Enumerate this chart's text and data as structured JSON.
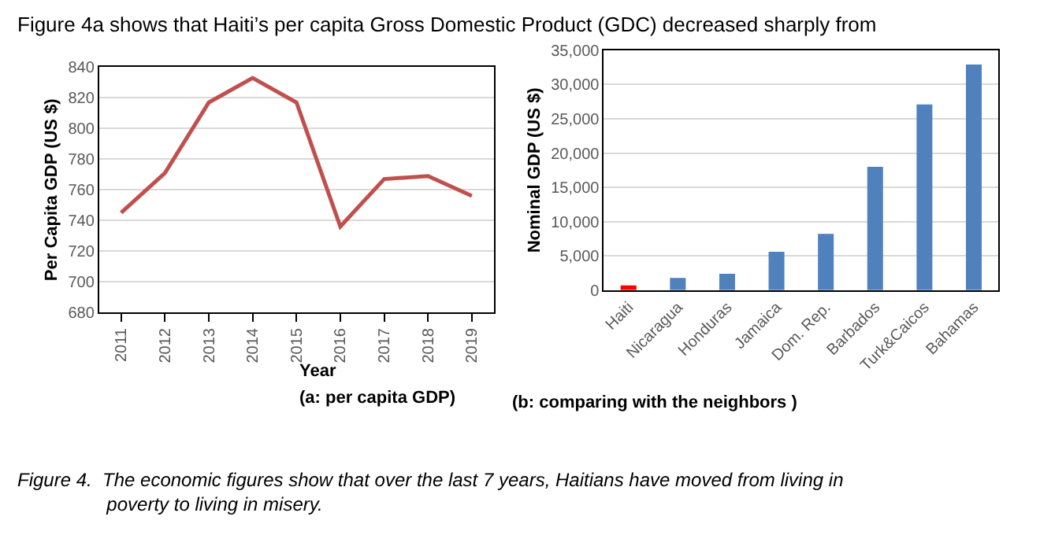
{
  "chart_data": [
    {
      "type": "line",
      "title": "(a: per capita GDP)",
      "xlabel": "Year",
      "ylabel": "Per Capita GDP (US $)",
      "categories": [
        "2011",
        "2012",
        "2013",
        "2014",
        "2015",
        "2016",
        "2017",
        "2018",
        "2019"
      ],
      "series": [
        {
          "color": "#c0504d",
          "values": [
            745,
            771,
            817,
            833,
            817,
            736,
            767,
            769,
            756
          ]
        }
      ],
      "ylim": [
        680,
        840
      ],
      "yticks": [
        680,
        700,
        720,
        740,
        760,
        780,
        800,
        820,
        840
      ],
      "grid": "y",
      "annotations": [
        "Figure 4a shows that Haiti’s per capita Gross Domestic Product (GDC) decreased sharply from",
        "Figure 4.  The economic figures show that over the last 7 years, Haitians have moved from living in poverty to living in misery."
      ]
    },
    {
      "type": "bar",
      "title": "(b: comparing with the neighbors )",
      "ylabel": "Nominal GDP (US $)",
      "categories": [
        "Haiti",
        "Nicaragua",
        "Honduras",
        "Jamaica",
        "Dom. Rep.",
        "Barbados",
        "Turk&Caicos",
        "Bahamas"
      ],
      "values": [
        700,
        1800,
        2400,
        5600,
        8200,
        18000,
        27100,
        32900
      ],
      "colors": [
        "#ff0000",
        "#4f81bd",
        "#4f81bd",
        "#4f81bd",
        "#4f81bd",
        "#4f81bd",
        "#4f81bd",
        "#4f81bd"
      ],
      "ylim": [
        0,
        35000
      ],
      "yticks": [
        0,
        {
          "value": 5000,
          "label": "5,000"
        },
        {
          "value": 10000,
          "label": "10,000"
        },
        {
          "value": 15000,
          "label": "15,000"
        },
        {
          "value": 20000,
          "label": "20,000"
        },
        {
          "value": 25000,
          "label": "25,000"
        },
        {
          "value": 30000,
          "label": "30,000"
        },
        {
          "value": 35000,
          "label": "35,000"
        }
      ],
      "grid": "y"
    }
  ]
}
